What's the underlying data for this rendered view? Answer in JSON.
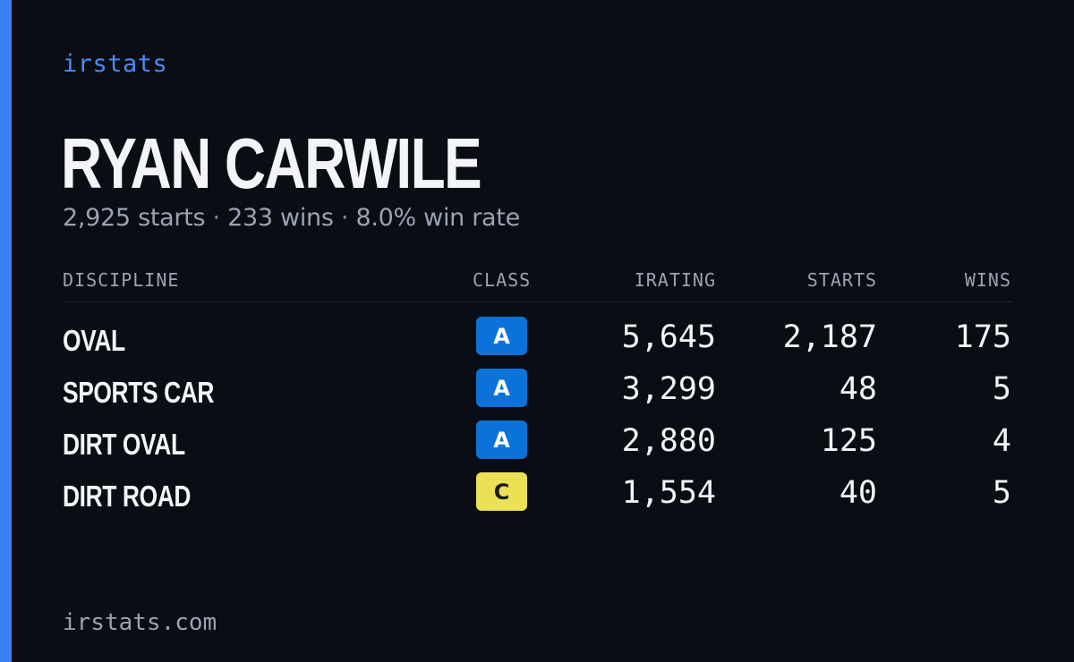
{
  "brand": "irstats",
  "player": {
    "name": "RYAN CARWILE",
    "starts_text": "2,925 starts",
    "wins_text": "233 wins",
    "win_rate_text": "8.0% win rate",
    "separator": "·"
  },
  "table": {
    "headers": {
      "discipline": "DISCIPLINE",
      "class": "CLASS",
      "irating": "IRATING",
      "starts": "STARTS",
      "wins": "WINS"
    },
    "rows": [
      {
        "discipline": "OVAL",
        "class": "A",
        "class_bg": "#0b72d9",
        "class_fg": "#ffffff",
        "irating": "5,645",
        "starts": "2,187",
        "wins": "175"
      },
      {
        "discipline": "SPORTS CAR",
        "class": "A",
        "class_bg": "#0b72d9",
        "class_fg": "#ffffff",
        "irating": "3,299",
        "starts": "48",
        "wins": "5"
      },
      {
        "discipline": "DIRT OVAL",
        "class": "A",
        "class_bg": "#0b72d9",
        "class_fg": "#ffffff",
        "irating": "2,880",
        "starts": "125",
        "wins": "4"
      },
      {
        "discipline": "DIRT ROAD",
        "class": "C",
        "class_bg": "#ece055",
        "class_fg": "#1a1a1a",
        "irating": "1,554",
        "starts": "40",
        "wins": "5"
      }
    ]
  },
  "footer": "irstats.com",
  "colors": {
    "background": "#0a0d14",
    "accent": "#3b82f6",
    "brand_text": "#4a8cf7",
    "muted_text": "#9aa3b3",
    "primary_text": "#f3f4f8"
  }
}
